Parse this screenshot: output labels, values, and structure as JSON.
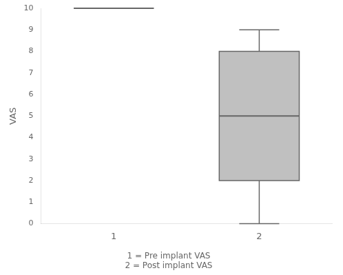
{
  "chart_data": {
    "type": "box",
    "categories": [
      "1",
      "2"
    ],
    "values": [
      {
        "low": 10,
        "q1": 10,
        "median": 10,
        "q3": 10,
        "high": 10
      },
      {
        "low": 0,
        "q1": 2,
        "median": 5,
        "q3": 8,
        "high": 9
      }
    ],
    "color": "#c0c0c0",
    "y_label": "VAS",
    "ylim": [
      0,
      10
    ],
    "yticks": [
      0,
      1,
      2,
      3,
      4,
      5,
      6,
      7,
      8,
      9,
      10
    ],
    "annotations": [
      "1 = Pre implant VAS",
      "2 = Post implant VAS"
    ],
    "grid": false
  }
}
